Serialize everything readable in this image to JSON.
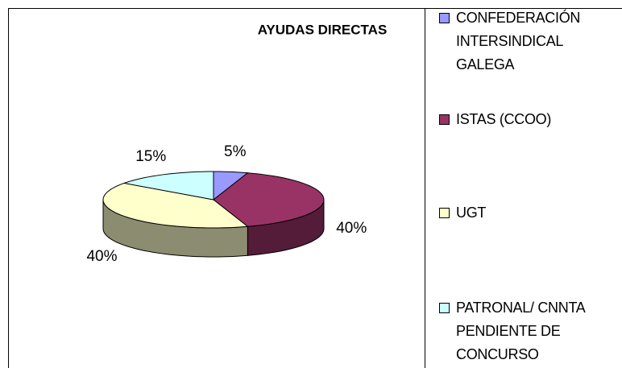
{
  "chart_data": {
    "type": "pie3d",
    "title": "AYUDAS DIRECTAS",
    "categories": [
      "CONFEDERACIÓN INTERSINDICAL GALEGA",
      "ISTAS (CCOO)",
      "UGT",
      "PATRONAL/ CNNTA PENDIENTE DE CONCURSO"
    ],
    "values": [
      5,
      40,
      40,
      15
    ],
    "value_labels": [
      "5%",
      "40%",
      "40%",
      "15%"
    ],
    "colors": [
      "#9999ff",
      "#993366",
      "#ffffcc",
      "#ccffff"
    ],
    "legend": "right"
  }
}
